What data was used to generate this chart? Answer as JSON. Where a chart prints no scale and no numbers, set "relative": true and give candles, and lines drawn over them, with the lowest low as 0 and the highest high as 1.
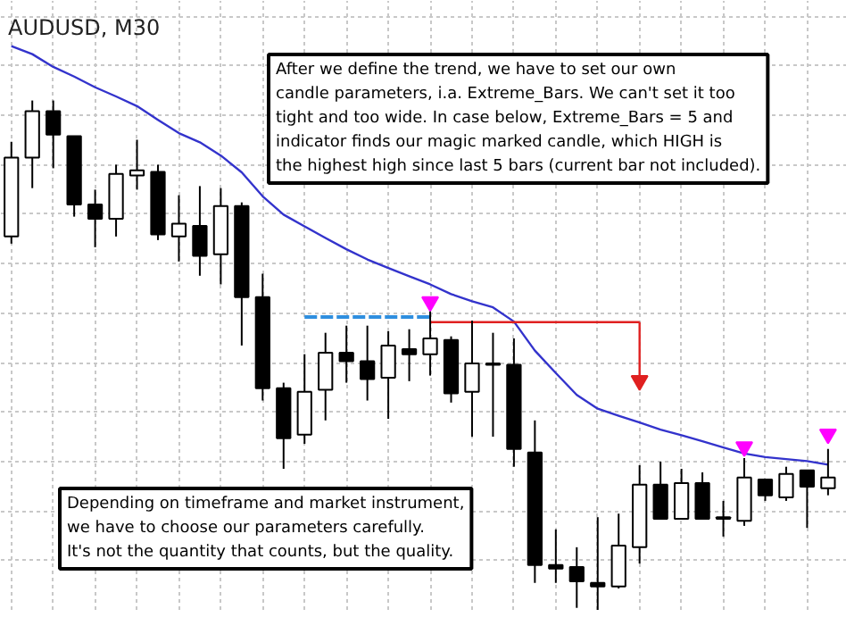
{
  "chart_data": {
    "type": "candlestick",
    "title": "AUDUSD, M30",
    "relative": true,
    "grid": true,
    "categories": [
      null,
      null,
      null,
      null,
      null,
      null,
      null,
      null,
      null,
      null,
      null,
      null,
      null,
      null,
      null,
      null,
      null,
      null,
      null,
      null,
      null,
      null,
      null,
      null,
      null,
      null,
      null,
      null,
      null,
      null,
      null,
      null,
      null,
      null,
      null,
      null,
      null,
      null,
      null,
      null
    ],
    "ohlc": [
      [
        0.733,
        0.919,
        0.719,
        0.888
      ],
      [
        0.888,
        1.0,
        0.828,
        0.979
      ],
      [
        0.979,
        1.0,
        0.867,
        0.933
      ],
      [
        0.93,
        0.93,
        0.772,
        0.796
      ],
      [
        0.796,
        0.825,
        0.712,
        0.768
      ],
      [
        0.768,
        0.874,
        0.733,
        0.856
      ],
      [
        0.853,
        0.923,
        0.825,
        0.863
      ],
      [
        0.86,
        0.874,
        0.726,
        0.737
      ],
      [
        0.733,
        0.814,
        0.684,
        0.758
      ],
      [
        0.754,
        0.832,
        0.656,
        0.695
      ],
      [
        0.698,
        0.828,
        0.639,
        0.793
      ],
      [
        0.793,
        0.8,
        0.519,
        0.614
      ],
      [
        0.614,
        0.66,
        0.411,
        0.435
      ],
      [
        0.435,
        0.446,
        0.277,
        0.337
      ],
      [
        0.344,
        0.502,
        0.326,
        0.428
      ],
      [
        0.432,
        0.544,
        0.372,
        0.505
      ],
      [
        0.505,
        0.558,
        0.446,
        0.488
      ],
      [
        0.488,
        0.558,
        0.411,
        0.453
      ],
      [
        0.456,
        0.547,
        0.375,
        0.519
      ],
      [
        0.512,
        0.551,
        0.449,
        0.502
      ],
      [
        0.502,
        0.586,
        0.46,
        0.533
      ],
      [
        0.53,
        0.537,
        0.407,
        0.425
      ],
      [
        0.428,
        0.568,
        0.34,
        0.484
      ],
      [
        0.484,
        0.544,
        0.34,
        0.481
      ],
      [
        0.481,
        0.533,
        0.281,
        0.316
      ],
      [
        0.309,
        0.372,
        0.053,
        0.088
      ],
      [
        0.088,
        0.158,
        0.053,
        0.081
      ],
      [
        0.084,
        0.123,
        0.004,
        0.056
      ],
      [
        0.053,
        0.182,
        0.0,
        0.046
      ],
      [
        0.046,
        0.189,
        0.042,
        0.126
      ],
      [
        0.123,
        0.284,
        0.091,
        0.246
      ],
      [
        0.246,
        0.291,
        0.179,
        0.179
      ],
      [
        0.179,
        0.277,
        0.179,
        0.249
      ],
      [
        0.249,
        0.27,
        0.179,
        0.179
      ],
      [
        0.182,
        0.214,
        0.144,
        0.179
      ],
      [
        0.175,
        0.298,
        0.165,
        0.26
      ],
      [
        0.256,
        0.256,
        0.214,
        0.225
      ],
      [
        0.221,
        0.281,
        0.214,
        0.267
      ],
      [
        0.274,
        0.274,
        0.161,
        0.242
      ],
      [
        0.239,
        0.316,
        0.225,
        0.26
      ]
    ],
    "series": [
      {
        "type": "line",
        "color": "#3333cc",
        "line_style": "solid",
        "values": [
          1.107,
          1.091,
          1.066,
          1.047,
          1.026,
          1.008,
          0.989,
          0.962,
          0.936,
          0.918,
          0.892,
          0.859,
          0.812,
          0.776,
          0.753,
          0.73,
          0.708,
          0.688,
          0.671,
          0.655,
          0.639,
          0.62,
          0.606,
          0.594,
          0.566,
          0.509,
          0.465,
          0.422,
          0.395,
          0.381,
          0.368,
          0.354,
          0.343,
          0.331,
          0.319,
          0.307,
          0.3,
          0.296,
          0.292,
          0.285
        ]
      },
      {
        "type": "line",
        "color": "#2f8fdf",
        "line_style": "dashed",
        "values": [
          null,
          null,
          null,
          null,
          null,
          null,
          null,
          null,
          null,
          null,
          null,
          null,
          null,
          null,
          0.575,
          0.575,
          0.575,
          0.575,
          0.575,
          0.575,
          0.575,
          null,
          null,
          null,
          null,
          null,
          null,
          null,
          null,
          null,
          null,
          null,
          null,
          null,
          null,
          null,
          null,
          null,
          null,
          null
        ]
      },
      {
        "type": "line",
        "color": "#e02020",
        "line_style": "solid",
        "values": [
          null,
          null,
          null,
          null,
          null,
          null,
          null,
          null,
          null,
          null,
          null,
          null,
          null,
          null,
          null,
          null,
          null,
          null,
          null,
          null,
          0.565,
          0.565,
          0.565,
          0.565,
          0.565,
          0.565,
          0.565,
          0.565,
          0.565,
          0.565,
          0.565,
          null,
          null,
          null,
          null,
          null,
          null,
          null,
          null,
          null
        ]
      },
      {
        "type": "scatter",
        "color": "#e02020",
        "values": [
          null,
          null,
          null,
          null,
          null,
          null,
          null,
          null,
          null,
          null,
          null,
          null,
          null,
          null,
          null,
          null,
          null,
          null,
          null,
          null,
          null,
          null,
          null,
          null,
          null,
          null,
          null,
          null,
          null,
          null,
          0.45,
          null,
          null,
          null,
          null,
          null,
          null,
          null,
          null,
          null
        ],
        "errors": [
          null,
          null,
          null,
          null,
          null,
          null,
          null,
          null,
          null,
          null,
          null,
          null,
          null,
          null,
          null,
          null,
          null,
          null,
          null,
          null,
          null,
          null,
          null,
          null,
          null,
          null,
          null,
          null,
          null,
          null,
          [
            0.45,
            0.565
          ],
          null,
          null,
          null,
          null,
          null,
          null,
          null,
          null,
          null
        ]
      },
      {
        "type": "scatter",
        "color": "#ff00ff",
        "values": [
          null,
          null,
          null,
          null,
          null,
          null,
          null,
          null,
          null,
          null,
          null,
          null,
          null,
          null,
          null,
          null,
          null,
          null,
          null,
          null,
          0.605,
          null,
          null,
          null,
          null,
          null,
          null,
          null,
          null,
          null,
          null,
          null,
          null,
          null,
          null,
          0.32,
          null,
          null,
          null,
          0.345
        ]
      }
    ],
    "annotations": [
      "After we define the trend, we have to set our own\ncandle parameters, i.a. Extreme_Bars. We can't set it too\ntight and too wide. In case below, Extreme_Bars = 5 and\nindicator finds our magic marked candle, which HIGH is\nthe highest high since last 5 bars (current bar not included).",
      "Depending on timeframe and market instrument,\nwe have to choose our parameters carefully.\nIt's not the quantity that counts, but the quality."
    ]
  }
}
